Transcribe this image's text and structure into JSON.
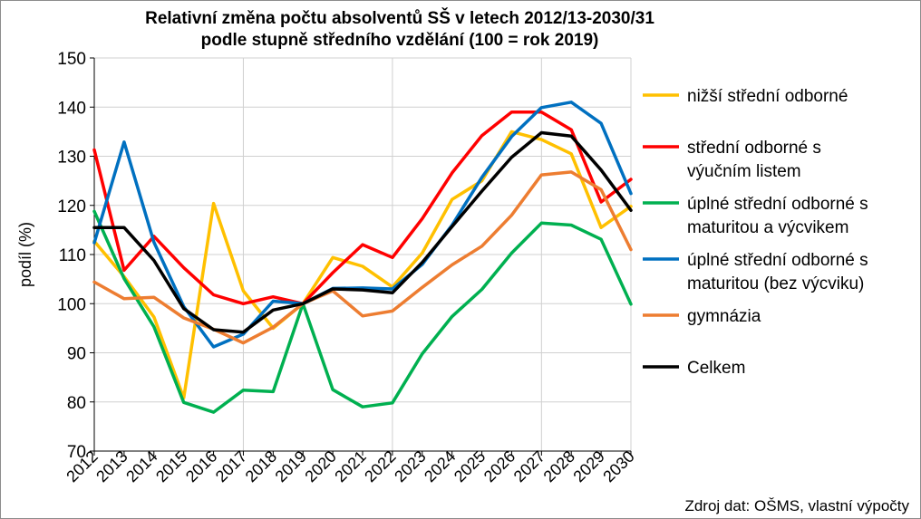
{
  "chart_data": {
    "type": "line",
    "title_line1": "Relativní změna počtu absolventů SŠ v letech 2012/13-2030/31",
    "title_line2": "podle stupně středního vzdělání (100 = rok 2019)",
    "ylabel": "podíl (%)",
    "xlabel": "",
    "source": "Zdroj dat: OŠMS, vlastní výpočty",
    "ylim": [
      70,
      150
    ],
    "yticks": [
      70,
      80,
      90,
      100,
      110,
      120,
      130,
      140,
      150
    ],
    "x": [
      "2012",
      "2013",
      "2014",
      "2015",
      "2016",
      "2017",
      "2018",
      "2019",
      "2020",
      "2021",
      "2022",
      "2023",
      "2024",
      "2025",
      "2026",
      "2027",
      "2028",
      "2029",
      "2030"
    ],
    "vertical_gridlines_at": [
      "2012",
      "2017",
      "2022",
      "2027"
    ],
    "series": [
      {
        "name": "nižší střední odborné",
        "color": "#FFC000",
        "label_lines": [
          "nižší střední odborné"
        ],
        "values": [
          112.7,
          105.5,
          97.3,
          80.8,
          120.4,
          102.6,
          95.0,
          100.0,
          109.4,
          107.6,
          103.4,
          110.3,
          121.2,
          125.0,
          135.0,
          133.4,
          130.5,
          115.5,
          119.8
        ]
      },
      {
        "name": "střední odborné s výučním listem",
        "color": "#FF0000",
        "label_lines": [
          "střední odborné s",
          "výučním listem"
        ],
        "values": [
          131.3,
          106.8,
          113.7,
          107.3,
          101.8,
          100.0,
          101.4,
          100.0,
          106.3,
          112.0,
          109.4,
          117.3,
          126.6,
          134.2,
          139.0,
          139.0,
          135.4,
          120.7,
          125.3
        ]
      },
      {
        "name": "úplné střední odborné s maturitou a výcvikem",
        "color": "#00B050",
        "label_lines": [
          "úplné střední odborné s",
          "maturitou a výcvikem"
        ],
        "values": [
          118.8,
          105.1,
          95.3,
          79.9,
          77.9,
          82.4,
          82.1,
          100.0,
          82.5,
          79.0,
          79.8,
          89.8,
          97.4,
          102.9,
          110.3,
          116.4,
          116.0,
          113.1,
          99.9
        ]
      },
      {
        "name": "úplné střední odborné s maturitou (bez výcviku)",
        "color": "#0070C0",
        "label_lines": [
          "úplné střední odborné s",
          "maturitou (bez výcviku)"
        ],
        "values": [
          112.4,
          132.9,
          112.5,
          99.4,
          91.2,
          93.8,
          100.5,
          100.0,
          103.1,
          103.2,
          103.0,
          108.0,
          116.0,
          125.7,
          134.0,
          139.9,
          141.0,
          136.7,
          122.4
        ]
      },
      {
        "name": "gymnázia",
        "color": "#ED7D31",
        "label_lines": [
          "gymnázia"
        ],
        "values": [
          104.4,
          101.0,
          101.3,
          97.1,
          94.8,
          92.0,
          95.2,
          100.0,
          102.6,
          97.5,
          98.5,
          103.3,
          107.9,
          111.7,
          118.0,
          126.2,
          126.8,
          123.2,
          111.0
        ]
      },
      {
        "name": "Celkem",
        "color": "#000000",
        "label_lines": [
          "Celkem"
        ],
        "values": [
          115.5,
          115.5,
          108.8,
          99.0,
          94.7,
          94.2,
          98.7,
          100.0,
          103.0,
          102.8,
          102.2,
          108.4,
          115.7,
          122.9,
          129.8,
          134.8,
          134.1,
          127.2,
          119.0
        ]
      }
    ]
  }
}
